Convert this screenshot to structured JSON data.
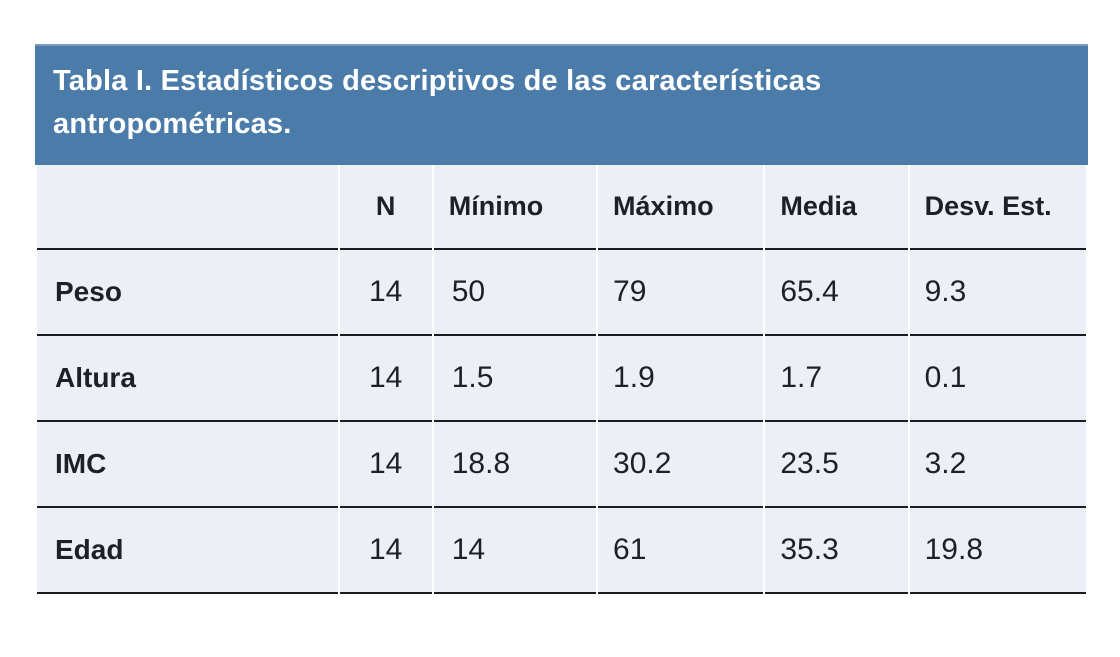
{
  "chart_data": {
    "type": "table",
    "title": "Tabla I. Estadísticos descriptivos de las características antropométricas.",
    "columns": [
      "",
      "N",
      "Mínimo",
      "Máximo",
      "Media",
      "Desv. Est."
    ],
    "rows": [
      {
        "label": "Peso",
        "n": "14",
        "minimo": "50",
        "maximo": "79",
        "media": "65.4",
        "desv_est": "9.3"
      },
      {
        "label": "Altura",
        "n": "14",
        "minimo": "1.5",
        "maximo": "1.9",
        "media": "1.7",
        "desv_est": "0.1"
      },
      {
        "label": "IMC",
        "n": "14",
        "minimo": "18.8",
        "maximo": "30.2",
        "media": "23.5",
        "desv_est": "3.2"
      },
      {
        "label": "Edad",
        "n": "14",
        "minimo": "14",
        "maximo": "61",
        "media": "35.3",
        "desv_est": "19.8"
      }
    ],
    "layout": {
      "legend": "none",
      "grid": "horizontal-rules-only"
    }
  },
  "colors": {
    "title_bg": "#4B7CA9",
    "title_bg_highlight": "#7E9CBE",
    "title_text": "#FFFFFF",
    "row_bg": "#ECEFF6",
    "border": "#191C20",
    "text": "#1D2025"
  }
}
